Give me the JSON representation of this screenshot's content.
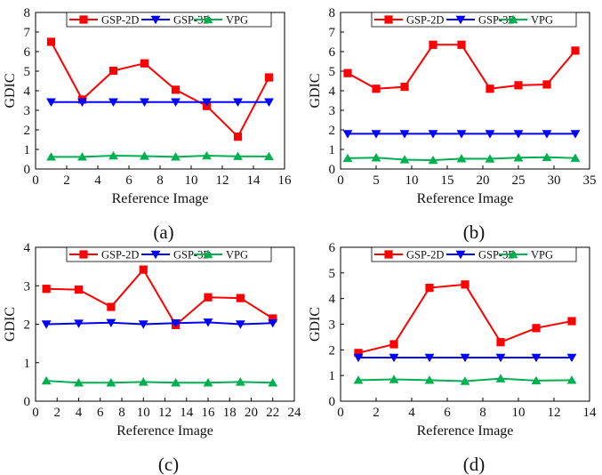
{
  "chart_data": [
    {
      "type": "line",
      "panel_label": "(a)",
      "xlabel": "Reference Image",
      "ylabel": "GDIC",
      "xlim": [
        0,
        16
      ],
      "ylim": [
        0,
        8
      ],
      "xticks": [
        0,
        2,
        4,
        6,
        8,
        10,
        12,
        14,
        16
      ],
      "yticks": [
        0,
        1,
        2,
        3,
        4,
        5,
        6,
        7,
        8
      ],
      "legend": "top",
      "x": [
        1,
        3,
        5,
        7,
        9,
        11,
        13,
        15
      ],
      "series": [
        {
          "name": "GSP-2D",
          "color": "#ff0000",
          "marker": "square",
          "values": [
            6.5,
            3.55,
            5.02,
            5.4,
            4.05,
            3.22,
            1.65,
            4.68
          ]
        },
        {
          "name": "GSP-3D",
          "color": "#0000ff",
          "marker": "triangle-down",
          "values": [
            3.42,
            3.42,
            3.42,
            3.42,
            3.42,
            3.42,
            3.42,
            3.42
          ]
        },
        {
          "name": "VPG",
          "color": "#00b050",
          "marker": "triangle-up",
          "values": [
            0.62,
            0.62,
            0.68,
            0.66,
            0.62,
            0.68,
            0.65,
            0.64
          ]
        }
      ]
    },
    {
      "type": "line",
      "panel_label": "(b)",
      "xlabel": "Reference Image",
      "ylabel": "GDIC",
      "xlim": [
        0,
        35
      ],
      "ylim": [
        0,
        8
      ],
      "xticks": [
        0,
        5,
        10,
        15,
        20,
        25,
        30,
        35
      ],
      "yticks": [
        0,
        1,
        2,
        3,
        4,
        5,
        6,
        7,
        8
      ],
      "legend": "top",
      "x": [
        1,
        5,
        9,
        13,
        17,
        21,
        25,
        29,
        33
      ],
      "series": [
        {
          "name": "GSP-2D",
          "color": "#ff0000",
          "marker": "square",
          "values": [
            4.9,
            4.1,
            4.2,
            6.35,
            6.35,
            4.1,
            4.28,
            4.32,
            6.05
          ]
        },
        {
          "name": "GSP-3D",
          "color": "#0000ff",
          "marker": "triangle-down",
          "values": [
            1.8,
            1.8,
            1.8,
            1.8,
            1.8,
            1.8,
            1.8,
            1.8,
            1.8
          ]
        },
        {
          "name": "VPG",
          "color": "#00b050",
          "marker": "triangle-up",
          "values": [
            0.55,
            0.58,
            0.48,
            0.45,
            0.53,
            0.52,
            0.58,
            0.6,
            0.56
          ]
        }
      ]
    },
    {
      "type": "line",
      "panel_label": "(c)",
      "xlabel": "Reference Image",
      "ylabel": "GDIC",
      "xlim": [
        0,
        24
      ],
      "ylim": [
        0,
        4
      ],
      "xticks": [
        0,
        2,
        4,
        6,
        8,
        10,
        12,
        14,
        16,
        18,
        20,
        22,
        24
      ],
      "yticks": [
        0,
        1,
        2,
        3,
        4
      ],
      "legend": "top",
      "x": [
        1,
        4,
        7,
        10,
        13,
        16,
        19,
        22
      ],
      "series": [
        {
          "name": "GSP-2D",
          "color": "#ff0000",
          "marker": "square",
          "values": [
            2.92,
            2.9,
            2.45,
            3.42,
            1.98,
            2.7,
            2.68,
            2.15
          ]
        },
        {
          "name": "GSP-3D",
          "color": "#0000ff",
          "marker": "triangle-down",
          "values": [
            2.0,
            2.02,
            2.04,
            2.0,
            2.03,
            2.05,
            2.0,
            2.03
          ]
        },
        {
          "name": "VPG",
          "color": "#00b050",
          "marker": "triangle-up",
          "values": [
            0.53,
            0.48,
            0.48,
            0.5,
            0.48,
            0.48,
            0.5,
            0.48
          ]
        }
      ]
    },
    {
      "type": "line",
      "panel_label": "(d)",
      "xlabel": "Reference Image",
      "ylabel": "GDIC",
      "xlim": [
        0,
        14
      ],
      "ylim": [
        0,
        6
      ],
      "xticks": [
        0,
        2,
        4,
        6,
        8,
        10,
        12,
        14
      ],
      "yticks": [
        0,
        1,
        2,
        3,
        4,
        5,
        6
      ],
      "legend": "top",
      "x": [
        1,
        3,
        5,
        7,
        9,
        11,
        13
      ],
      "series": [
        {
          "name": "GSP-2D",
          "color": "#ff0000",
          "marker": "square",
          "values": [
            1.88,
            2.22,
            4.42,
            4.55,
            2.3,
            2.85,
            3.12
          ]
        },
        {
          "name": "GSP-3D",
          "color": "#0000ff",
          "marker": "triangle-down",
          "values": [
            1.7,
            1.7,
            1.7,
            1.7,
            1.7,
            1.7,
            1.7
          ]
        },
        {
          "name": "VPG",
          "color": "#00b050",
          "marker": "triangle-up",
          "values": [
            0.82,
            0.85,
            0.82,
            0.78,
            0.88,
            0.8,
            0.82
          ]
        }
      ]
    }
  ]
}
